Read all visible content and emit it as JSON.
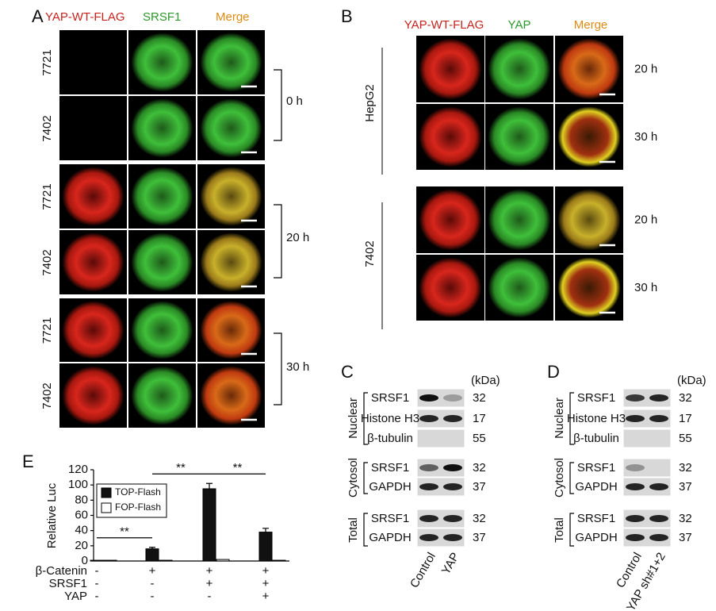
{
  "panel_a": {
    "label": "A",
    "columns": [
      "YAP-WT-FLAG",
      "SRSF1",
      "Merge"
    ],
    "rows": [
      "7721",
      "7402",
      "7721",
      "7402",
      "7721",
      "7402"
    ],
    "times": [
      "0 h",
      "20 h",
      "30 h"
    ]
  },
  "panel_b": {
    "label": "B",
    "columns": [
      "YAP-WT-FLAG",
      "YAP",
      "Merge"
    ],
    "groups": [
      "HepG2",
      "7402"
    ],
    "times": [
      "20 h",
      "30 h",
      "20 h",
      "30 h"
    ]
  },
  "panel_c": {
    "label": "C",
    "unit": "(kDa)",
    "fractions": [
      "Nuclear",
      "Cytosol",
      "Total"
    ],
    "proteins": [
      "SRSF1",
      "Histone H3",
      "β-tubulin",
      "SRSF1",
      "GAPDH",
      "SRSF1",
      "GAPDH"
    ],
    "weights": [
      32,
      17,
      55,
      32,
      37,
      32,
      37
    ],
    "lanes": [
      "Control",
      "YAP"
    ]
  },
  "panel_d": {
    "label": "D",
    "unit": "(kDa)",
    "fractions": [
      "Nuclear",
      "Cytosol",
      "Total"
    ],
    "proteins": [
      "SRSF1",
      "Histone H3",
      "β-tubulin",
      "SRSF1",
      "GAPDH",
      "SRSF1",
      "GAPDH"
    ],
    "weights": [
      32,
      17,
      55,
      32,
      37,
      32,
      37
    ],
    "lanes": [
      "Control",
      "YAP sh#1+2"
    ]
  },
  "chart_data": {
    "type": "bar",
    "panel_label": "E",
    "y_label": "Relative Luc",
    "series": [
      {
        "name": "TOP-Flash",
        "color": "#111111",
        "values": [
          1,
          16,
          95,
          38
        ],
        "errors": [
          0,
          2,
          7,
          5
        ]
      },
      {
        "name": "FOP-Flash",
        "color": "#ffffff",
        "values": [
          1,
          1,
          2,
          1
        ]
      }
    ],
    "ylim": [
      0,
      120
    ],
    "yticks": [
      0,
      20,
      40,
      60,
      80,
      100,
      120
    ],
    "significance": [
      "**",
      "**",
      "**"
    ],
    "conditions": [
      {
        "name": "β-Catenin",
        "values": [
          "-",
          "+",
          "+",
          "+"
        ]
      },
      {
        "name": "SRSF1",
        "values": [
          "-",
          "-",
          "+",
          "+"
        ]
      },
      {
        "name": "YAP",
        "values": [
          "-",
          "-",
          "-",
          "+"
        ]
      }
    ]
  }
}
